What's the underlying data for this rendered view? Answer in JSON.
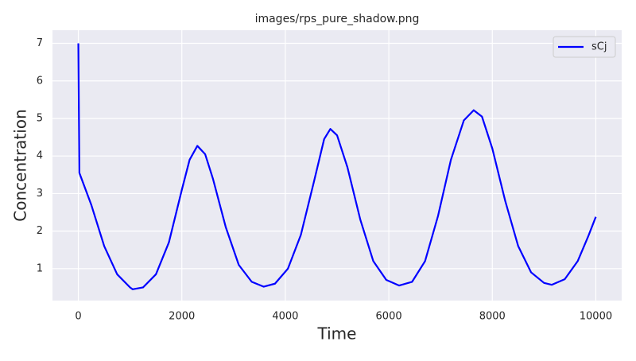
{
  "chart_data": {
    "type": "line",
    "title": "images/rps_pure_shadow.png",
    "x_label": "Time",
    "y_label": "Concentration",
    "x": [
      0,
      20,
      250,
      500,
      750,
      1000,
      1050,
      1250,
      1500,
      1750,
      2000,
      2150,
      2300,
      2450,
      2600,
      2850,
      3100,
      3350,
      3580,
      3800,
      4050,
      4300,
      4550,
      4750,
      4870,
      5000,
      5200,
      5450,
      5700,
      5950,
      6200,
      6450,
      6700,
      6950,
      7200,
      7450,
      7640,
      7800,
      8000,
      8250,
      8500,
      8750,
      9000,
      9150,
      9400,
      9650,
      9850,
      10000
    ],
    "series": [
      {
        "name": "sCj",
        "color": "#0000ff",
        "values": [
          7.0,
          3.55,
          2.7,
          1.6,
          0.85,
          0.5,
          0.45,
          0.5,
          0.85,
          1.7,
          3.1,
          3.9,
          4.27,
          4.05,
          3.4,
          2.1,
          1.1,
          0.65,
          0.52,
          0.6,
          1.0,
          1.9,
          3.3,
          4.45,
          4.72,
          4.55,
          3.7,
          2.3,
          1.2,
          0.7,
          0.55,
          0.65,
          1.2,
          2.4,
          3.9,
          4.95,
          5.22,
          5.05,
          4.2,
          2.8,
          1.6,
          0.9,
          0.62,
          0.57,
          0.72,
          1.2,
          1.85,
          2.38
        ]
      }
    ],
    "xlim": [
      -500,
      10500
    ],
    "ylim": [
      0.15,
      7.35
    ],
    "xticks": [
      0,
      2000,
      4000,
      6000,
      8000,
      10000
    ],
    "yticks": [
      1,
      2,
      3,
      4,
      5,
      6,
      7
    ],
    "grid": true,
    "legend": "upper right"
  }
}
